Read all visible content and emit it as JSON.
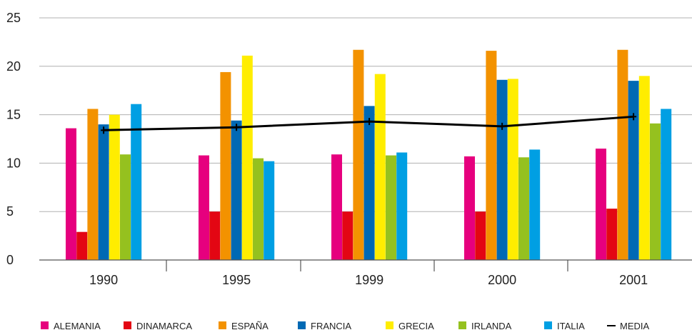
{
  "chart_data": {
    "type": "bar",
    "title": "",
    "xlabel": "",
    "ylabel": "",
    "ylim": [
      0,
      25
    ],
    "yticks": [
      0,
      5,
      10,
      15,
      20,
      25
    ],
    "grid": true,
    "legend_position": "bottom",
    "categories": [
      "1990",
      "1995",
      "1999",
      "2000",
      "2001"
    ],
    "series": [
      {
        "name": "ALEMANIA",
        "color": "#e6007e",
        "values": [
          13.6,
          10.8,
          10.9,
          10.7,
          11.5
        ]
      },
      {
        "name": "DINAMARCA",
        "color": "#e30613",
        "values": [
          2.9,
          5.0,
          5.0,
          5.0,
          5.3
        ]
      },
      {
        "name": "ESPAÑA",
        "color": "#f39200",
        "values": [
          15.6,
          19.4,
          21.7,
          21.6,
          21.7
        ]
      },
      {
        "name": "FRANCIA",
        "color": "#0069b4",
        "values": [
          14.0,
          14.4,
          15.9,
          18.6,
          18.5
        ]
      },
      {
        "name": "GRECIA",
        "color": "#ffed00",
        "values": [
          15.0,
          21.1,
          19.2,
          18.7,
          19.0
        ]
      },
      {
        "name": "IRLANDA",
        "color": "#95c11f",
        "values": [
          10.9,
          10.5,
          10.8,
          10.6,
          14.1
        ]
      },
      {
        "name": "ITALIA",
        "color": "#009fe3",
        "values": [
          16.1,
          10.2,
          11.1,
          11.4,
          15.6
        ]
      }
    ],
    "line_series": {
      "name": "MEDIA",
      "color": "#000000",
      "values": [
        13.4,
        13.7,
        14.3,
        13.8,
        14.8
      ]
    }
  }
}
